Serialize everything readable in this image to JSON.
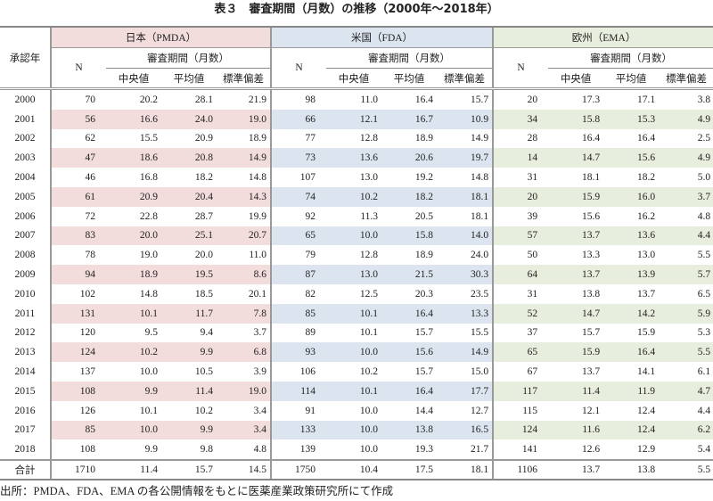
{
  "title": "表３　審査期間（月数）の推移（2000年〜2018年）",
  "header": {
    "year_label": "承認年",
    "regions": [
      "日本（PMDA）",
      "米国（FDA）",
      "欧州（EMA）"
    ],
    "n_label": "N",
    "period_label": "審査期間（月数）",
    "stats": [
      "中央値",
      "平均値",
      "標準偏差"
    ]
  },
  "colors": {
    "japan": "#f2dcdc",
    "us": "#dce5ef",
    "eu": "#e7eedd"
  },
  "rows": [
    [
      "2000",
      "70",
      "20.2",
      "28.1",
      "21.9",
      "98",
      "11.0",
      "16.4",
      "15.7",
      "20",
      "17.3",
      "17.1",
      "3.8"
    ],
    [
      "2001",
      "56",
      "16.6",
      "24.0",
      "19.0",
      "66",
      "12.1",
      "16.7",
      "10.9",
      "34",
      "15.8",
      "15.3",
      "4.9"
    ],
    [
      "2002",
      "62",
      "15.5",
      "20.9",
      "18.9",
      "77",
      "12.8",
      "18.9",
      "14.9",
      "28",
      "16.4",
      "16.4",
      "2.5"
    ],
    [
      "2003",
      "47",
      "18.6",
      "20.8",
      "14.9",
      "73",
      "13.6",
      "20.6",
      "19.7",
      "14",
      "14.7",
      "15.6",
      "4.9"
    ],
    [
      "2004",
      "46",
      "16.8",
      "18.2",
      "14.8",
      "107",
      "13.0",
      "19.2",
      "14.8",
      "31",
      "18.1",
      "18.2",
      "5.0"
    ],
    [
      "2005",
      "61",
      "20.9",
      "20.4",
      "14.3",
      "74",
      "10.2",
      "18.2",
      "18.1",
      "20",
      "15.9",
      "16.0",
      "3.7"
    ],
    [
      "2006",
      "72",
      "22.8",
      "28.7",
      "19.9",
      "92",
      "11.3",
      "20.5",
      "18.1",
      "39",
      "15.6",
      "16.2",
      "4.8"
    ],
    [
      "2007",
      "83",
      "20.0",
      "25.1",
      "20.7",
      "65",
      "10.0",
      "15.8",
      "14.0",
      "57",
      "13.7",
      "13.6",
      "4.4"
    ],
    [
      "2008",
      "78",
      "19.0",
      "20.0",
      "11.0",
      "79",
      "12.8",
      "18.9",
      "24.0",
      "50",
      "13.3",
      "13.0",
      "5.5"
    ],
    [
      "2009",
      "94",
      "18.9",
      "19.5",
      "8.6",
      "87",
      "13.0",
      "21.5",
      "30.3",
      "64",
      "13.7",
      "13.9",
      "5.7"
    ],
    [
      "2010",
      "102",
      "14.8",
      "18.5",
      "20.1",
      "82",
      "12.5",
      "20.3",
      "23.5",
      "31",
      "13.8",
      "13.7",
      "6.5"
    ],
    [
      "2011",
      "131",
      "10.1",
      "11.7",
      "7.8",
      "85",
      "10.1",
      "16.4",
      "13.3",
      "52",
      "14.7",
      "14.2",
      "5.9"
    ],
    [
      "2012",
      "120",
      "9.5",
      "9.4",
      "3.7",
      "89",
      "10.1",
      "15.7",
      "15.5",
      "37",
      "15.7",
      "15.9",
      "5.3"
    ],
    [
      "2013",
      "124",
      "10.2",
      "9.9",
      "6.8",
      "93",
      "10.0",
      "15.6",
      "14.9",
      "65",
      "15.9",
      "16.4",
      "5.5"
    ],
    [
      "2014",
      "137",
      "10.0",
      "10.5",
      "3.9",
      "106",
      "10.2",
      "15.7",
      "15.0",
      "67",
      "13.7",
      "14.1",
      "6.1"
    ],
    [
      "2015",
      "108",
      "9.9",
      "11.4",
      "19.0",
      "114",
      "10.1",
      "16.4",
      "17.7",
      "117",
      "11.4",
      "11.9",
      "4.7"
    ],
    [
      "2016",
      "126",
      "10.1",
      "10.2",
      "3.4",
      "91",
      "10.0",
      "14.4",
      "12.7",
      "115",
      "12.1",
      "12.4",
      "4.4"
    ],
    [
      "2017",
      "85",
      "10.0",
      "9.9",
      "3.4",
      "133",
      "10.0",
      "13.8",
      "16.5",
      "124",
      "11.6",
      "12.4",
      "6.2"
    ],
    [
      "2018",
      "108",
      "9.9",
      "9.8",
      "4.8",
      "139",
      "10.0",
      "19.3",
      "21.7",
      "141",
      "12.6",
      "12.9",
      "5.4"
    ]
  ],
  "total": [
    "合計",
    "1710",
    "11.4",
    "15.7",
    "14.5",
    "1750",
    "10.4",
    "17.5",
    "18.1",
    "1106",
    "13.7",
    "13.8",
    "5.5"
  ],
  "footer": "出所：PMDA、FDA、EMA の各公開情報をもとに医薬産業政策研究所にて作成"
}
